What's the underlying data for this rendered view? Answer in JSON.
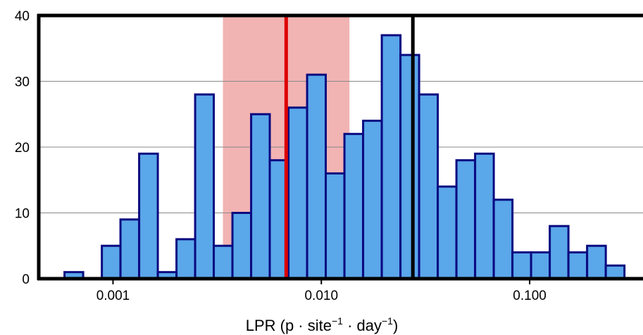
{
  "chart_data": {
    "type": "histogram",
    "xlabel_parts": [
      "LPR (p · site",
      "−1",
      " · day",
      "−1",
      ")"
    ],
    "log_x": true,
    "bins": [
      0.000585,
      0.000719,
      0.000884,
      0.001086,
      0.001335,
      0.001641,
      0.002017,
      0.002479,
      0.003046,
      0.003744,
      0.004603,
      0.005656,
      0.006953,
      0.008546,
      0.0105,
      0.01291,
      0.01587,
      0.01951,
      0.02398,
      0.02947,
      0.03622,
      0.04452,
      0.05472,
      0.06726,
      0.08268,
      0.1016,
      0.1249,
      0.1535,
      0.1887,
      0.232,
      0.2851
    ],
    "values": [
      1,
      0,
      5,
      9,
      19,
      1,
      6,
      28,
      5,
      10,
      25,
      18,
      26,
      31,
      16,
      22,
      24,
      37,
      34,
      28,
      14,
      18,
      19,
      12,
      4,
      4,
      8,
      4,
      5,
      2
    ],
    "color": "#5aa7ea",
    "edge_color": "#0a0a80",
    "xlim": [
      0.00044,
      0.35
    ],
    "ylim": [
      0,
      40
    ],
    "xticks": [
      0.001,
      {
        "value": 0.01,
        "label": "0.010"
      },
      {
        "value": 0.1,
        "label": "0.100"
      }
    ],
    "yticks": [
      0,
      10,
      20,
      30,
      40
    ],
    "grid": true,
    "shaded_range": {
      "x": [
        0.00337,
        0.01365
      ],
      "color": "#f2b3b3"
    },
    "reference_lines": [
      {
        "x": 0.00678,
        "color": "#dd0000"
      },
      {
        "x": 0.0275,
        "color": "#000000"
      }
    ]
  }
}
